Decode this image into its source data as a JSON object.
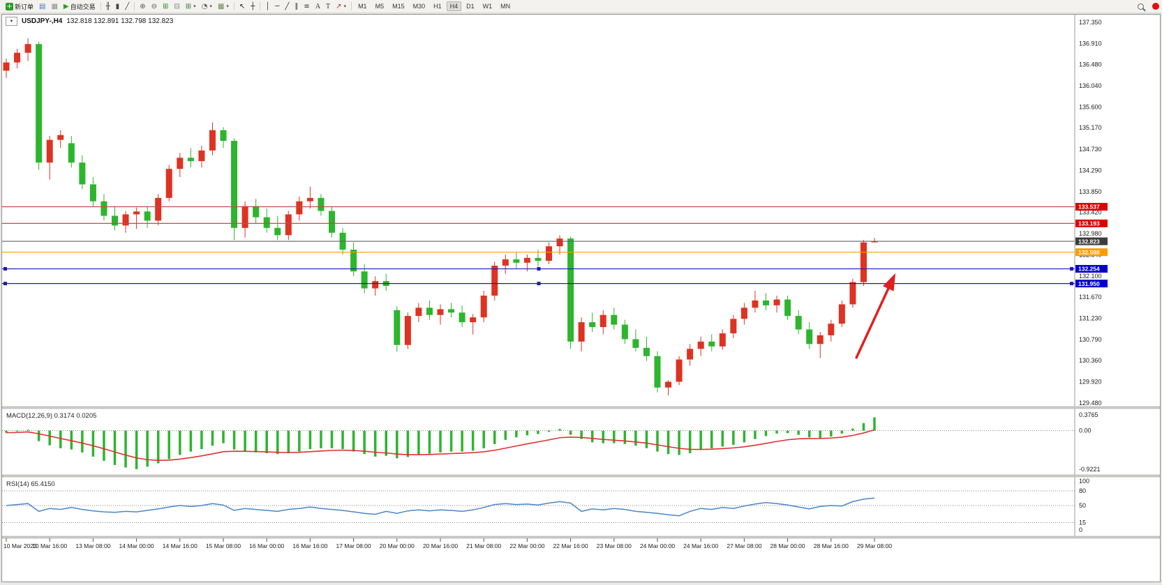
{
  "toolbar": {
    "new_order": "新订单",
    "autotrading": "自动交易",
    "timeframes": [
      "M1",
      "M5",
      "M15",
      "M30",
      "H1",
      "H4",
      "D1",
      "W1",
      "MN"
    ],
    "active_timeframe": "H4"
  },
  "icons": {
    "new_order": "+",
    "charts": "▤",
    "profile": "▦",
    "autotrading_play": "▶",
    "ohlc_bars": "╫",
    "candlesticks": "▮",
    "line_chart": "╱",
    "zoom_in": "⊕",
    "zoom_out": "⊖",
    "tile_windows": "⊞",
    "cascade_windows": "⊟",
    "new_chart": "⊞",
    "period": "◔",
    "template": "▦",
    "dropdown": "▾",
    "cursor": "↖",
    "crosshair": "┼",
    "vline": "│",
    "hline": "─",
    "trendline": "╱",
    "channel": "∥",
    "fibonacci": "≡",
    "text": "A",
    "label": "T",
    "arrows": "↗",
    "notification": "●",
    "collapse": "▼"
  },
  "chart_header": {
    "symbol_period": "USDJPY-,H4",
    "ohlc": "132.818 132.891 132.798 132.823"
  },
  "chart_data": {
    "type": "candlestick",
    "symbol": "USDJPY-",
    "timeframe": "H4",
    "current_bar": {
      "open": 132.818,
      "high": 132.891,
      "low": 132.798,
      "close": 132.823
    },
    "axis_price_top": 137.35,
    "axis_price_bottom": 129.48,
    "price_axis_labels": [
      "137.350",
      "136.910",
      "136.480",
      "136.040",
      "135.600",
      "135.170",
      "134.730",
      "134.290",
      "133.850",
      "133.420",
      "132.980",
      "132.540",
      "132.100",
      "131.670",
      "131.230",
      "130.790",
      "130.360",
      "129.920",
      "129.480"
    ],
    "time_labels": [
      "10 Mar 2023",
      "10 Mar 16:00",
      "13 Mar 08:00",
      "14 Mar 00:00",
      "14 Mar 16:00",
      "15 Mar 08:00",
      "16 Mar 00:00",
      "16 Mar 16:00",
      "17 Mar 08:00",
      "20 Mar 00:00",
      "20 Mar 16:00",
      "21 Mar 08:00",
      "22 Mar 00:00",
      "22 Mar 16:00",
      "23 Mar 08:00",
      "24 Mar 00:00",
      "24 Mar 16:00",
      "27 Mar 08:00",
      "28 Mar 00:00",
      "28 Mar 16:00",
      "29 Mar 08:00"
    ],
    "candles_per_label": 4,
    "bull_color": "#dd3322",
    "bear_color": "#2db52d",
    "candles": [
      [
        136.35,
        136.6,
        136.2,
        136.52
      ],
      [
        136.52,
        136.8,
        136.4,
        136.72
      ],
      [
        136.72,
        137.02,
        136.55,
        136.9
      ],
      [
        136.9,
        136.95,
        134.3,
        134.45
      ],
      [
        134.45,
        135.0,
        134.1,
        134.92
      ],
      [
        134.92,
        135.12,
        134.75,
        135.02
      ],
      [
        134.85,
        135.0,
        134.35,
        134.45
      ],
      [
        134.45,
        134.6,
        133.9,
        134.0
      ],
      [
        134.0,
        134.15,
        133.55,
        133.65
      ],
      [
        133.65,
        133.8,
        133.25,
        133.35
      ],
      [
        133.35,
        133.55,
        133.05,
        133.15
      ],
      [
        133.15,
        133.45,
        133.0,
        133.38
      ],
      [
        133.38,
        133.52,
        133.08,
        133.44
      ],
      [
        133.44,
        133.55,
        133.1,
        133.25
      ],
      [
        133.25,
        133.8,
        133.15,
        133.72
      ],
      [
        133.72,
        134.4,
        133.65,
        134.32
      ],
      [
        134.32,
        134.65,
        134.15,
        134.55
      ],
      [
        134.55,
        134.75,
        134.35,
        134.48
      ],
      [
        134.48,
        134.8,
        134.35,
        134.7
      ],
      [
        134.7,
        135.28,
        134.6,
        135.12
      ],
      [
        135.12,
        135.18,
        134.75,
        134.9
      ],
      [
        134.9,
        134.95,
        132.85,
        133.1
      ],
      [
        133.1,
        133.65,
        132.9,
        133.55
      ],
      [
        133.55,
        133.7,
        133.2,
        133.32
      ],
      [
        133.32,
        133.5,
        133.0,
        133.1
      ],
      [
        133.1,
        133.35,
        132.85,
        132.95
      ],
      [
        132.95,
        133.45,
        132.85,
        133.38
      ],
      [
        133.38,
        133.75,
        133.25,
        133.65
      ],
      [
        133.65,
        133.95,
        133.5,
        133.72
      ],
      [
        133.72,
        133.8,
        133.35,
        133.45
      ],
      [
        133.45,
        133.55,
        132.9,
        133.0
      ],
      [
        133.0,
        133.1,
        132.55,
        132.65
      ],
      [
        132.65,
        132.8,
        132.1,
        132.2
      ],
      [
        132.2,
        132.35,
        131.75,
        131.85
      ],
      [
        131.85,
        132.1,
        131.7,
        132.0
      ],
      [
        132.0,
        132.15,
        131.8,
        131.9
      ],
      [
        131.4,
        131.48,
        130.54,
        130.68
      ],
      [
        130.68,
        131.35,
        130.6,
        131.28
      ],
      [
        131.28,
        131.55,
        131.15,
        131.45
      ],
      [
        131.45,
        131.6,
        131.2,
        131.3
      ],
      [
        131.3,
        131.52,
        131.1,
        131.42
      ],
      [
        131.42,
        131.55,
        131.25,
        131.35
      ],
      [
        131.35,
        131.5,
        131.05,
        131.15
      ],
      [
        131.15,
        131.32,
        130.9,
        131.25
      ],
      [
        131.25,
        131.8,
        131.15,
        131.7
      ],
      [
        131.7,
        132.4,
        131.6,
        132.32
      ],
      [
        132.32,
        132.55,
        132.15,
        132.45
      ],
      [
        132.45,
        132.6,
        132.25,
        132.38
      ],
      [
        132.38,
        132.55,
        132.2,
        132.48
      ],
      [
        132.48,
        132.65,
        132.3,
        132.42
      ],
      [
        132.42,
        132.8,
        132.35,
        132.72
      ],
      [
        132.72,
        132.95,
        132.55,
        132.88
      ],
      [
        132.88,
        132.92,
        130.6,
        130.75
      ],
      [
        130.75,
        131.25,
        130.55,
        131.15
      ],
      [
        131.15,
        131.35,
        130.95,
        131.05
      ],
      [
        131.05,
        131.4,
        130.9,
        131.3
      ],
      [
        131.3,
        131.45,
        131.0,
        131.1
      ],
      [
        131.1,
        131.2,
        130.7,
        130.8
      ],
      [
        130.8,
        131.0,
        130.55,
        130.62
      ],
      [
        130.62,
        130.85,
        130.35,
        130.45
      ],
      [
        130.45,
        130.55,
        129.7,
        129.8
      ],
      [
        129.8,
        129.95,
        129.64,
        129.92
      ],
      [
        129.92,
        130.45,
        129.85,
        130.38
      ],
      [
        130.38,
        130.7,
        130.25,
        130.6
      ],
      [
        130.6,
        130.85,
        130.45,
        130.75
      ],
      [
        130.75,
        130.9,
        130.55,
        130.65
      ],
      [
        130.65,
        131.0,
        130.58,
        130.92
      ],
      [
        130.92,
        131.3,
        130.82,
        131.22
      ],
      [
        131.22,
        131.55,
        131.1,
        131.45
      ],
      [
        131.45,
        131.8,
        131.35,
        131.6
      ],
      [
        131.6,
        131.75,
        131.4,
        131.5
      ],
      [
        131.5,
        131.7,
        131.35,
        131.62
      ],
      [
        131.62,
        131.7,
        131.2,
        131.28
      ],
      [
        131.28,
        131.4,
        130.9,
        131.0
      ],
      [
        131.0,
        131.15,
        130.6,
        130.7
      ],
      [
        130.7,
        130.95,
        130.41,
        130.88
      ],
      [
        130.88,
        131.2,
        130.75,
        131.12
      ],
      [
        131.12,
        131.6,
        131.05,
        131.52
      ],
      [
        131.52,
        132.05,
        131.45,
        131.98
      ],
      [
        131.98,
        132.85,
        131.9,
        132.8
      ],
      [
        132.818,
        132.891,
        132.798,
        132.823
      ]
    ],
    "hlines": [
      {
        "price": 133.537,
        "label": "133.537",
        "line_color": "#c24a4a",
        "badge_color": "#dd0000",
        "selected": false
      },
      {
        "price": 133.193,
        "label": "133.193",
        "line_color": "#c24a4a",
        "badge_color": "#dd0000",
        "selected": false
      },
      {
        "price": 132.823,
        "label": "132.823",
        "line_color": "#616161",
        "badge_color": "#3c3c3c",
        "selected": false
      },
      {
        "price": 132.598,
        "label": "132.598",
        "line_color": "#ff9b00",
        "badge_color": "#ff9b00",
        "selected": false
      },
      {
        "price": 132.254,
        "label": "132.254",
        "line_color": "#1a1ab8",
        "badge_color": "#0000cc",
        "selected": true
      },
      {
        "price": 131.95,
        "label": "131.950",
        "line_color": "#1a1ab8",
        "badge_color": "#0000cc",
        "selected": true
      }
    ],
    "arrow": {
      "start": {
        "candle_index": 78.3,
        "price": 130.4
      },
      "end": {
        "candle_index": 81.8,
        "price": 132.1
      },
      "color": "#e01f1f"
    },
    "macd": {
      "label": "MACD(12,26,9)",
      "values_label": "0.3174 0.0205",
      "scale_max_label": "0.3765",
      "scale_zero_label": "0.00",
      "scale_min_label": "-0.9221",
      "max": 0.3765,
      "min": -0.9221,
      "histogram_color": "#2db52d",
      "signal_color": "#e03030",
      "signal_period": 9,
      "histogram": [
        -0.05,
        -0.02,
        0.02,
        -0.25,
        -0.35,
        -0.42,
        -0.45,
        -0.52,
        -0.62,
        -0.72,
        -0.82,
        -0.88,
        -0.92,
        -0.86,
        -0.78,
        -0.68,
        -0.58,
        -0.5,
        -0.44,
        -0.36,
        -0.3,
        -0.45,
        -0.5,
        -0.52,
        -0.54,
        -0.56,
        -0.54,
        -0.5,
        -0.44,
        -0.42,
        -0.42,
        -0.44,
        -0.5,
        -0.56,
        -0.62,
        -0.6,
        -0.66,
        -0.63,
        -0.58,
        -0.55,
        -0.52,
        -0.5,
        -0.5,
        -0.48,
        -0.42,
        -0.32,
        -0.22,
        -0.16,
        -0.11,
        -0.08,
        -0.03,
        0.04,
        -0.1,
        -0.2,
        -0.28,
        -0.3,
        -0.3,
        -0.32,
        -0.36,
        -0.42,
        -0.5,
        -0.56,
        -0.58,
        -0.54,
        -0.46,
        -0.42,
        -0.38,
        -0.34,
        -0.28,
        -0.2,
        -0.13,
        -0.07,
        -0.06,
        -0.1,
        -0.16,
        -0.18,
        -0.14,
        -0.07,
        0.05,
        0.18,
        0.3174
      ]
    },
    "rsi": {
      "label": "RSI(14)",
      "value_label": "65.4150",
      "scale_labels": [
        "100",
        "80",
        "50",
        "15",
        "0"
      ],
      "scale_values": [
        100,
        80,
        50,
        15,
        0
      ],
      "gridlines": [
        80,
        50,
        15
      ],
      "line_color": "#4a86c8",
      "values": [
        50,
        52,
        54,
        38,
        44,
        42,
        46,
        42,
        39,
        37,
        36,
        38,
        37,
        40,
        43,
        47,
        50,
        48,
        50,
        54,
        51,
        40,
        44,
        42,
        40,
        38,
        42,
        44,
        47,
        44,
        42,
        40,
        37,
        34,
        32,
        38,
        34,
        39,
        41,
        39,
        41,
        40,
        38,
        41,
        46,
        52,
        54,
        52,
        53,
        51,
        55,
        58,
        55,
        38,
        43,
        41,
        44,
        42,
        38,
        36,
        34,
        31,
        29,
        38,
        44,
        42,
        46,
        44,
        49,
        53,
        56,
        54,
        51,
        47,
        43,
        48,
        50,
        49,
        58,
        63,
        65.4
      ]
    }
  }
}
